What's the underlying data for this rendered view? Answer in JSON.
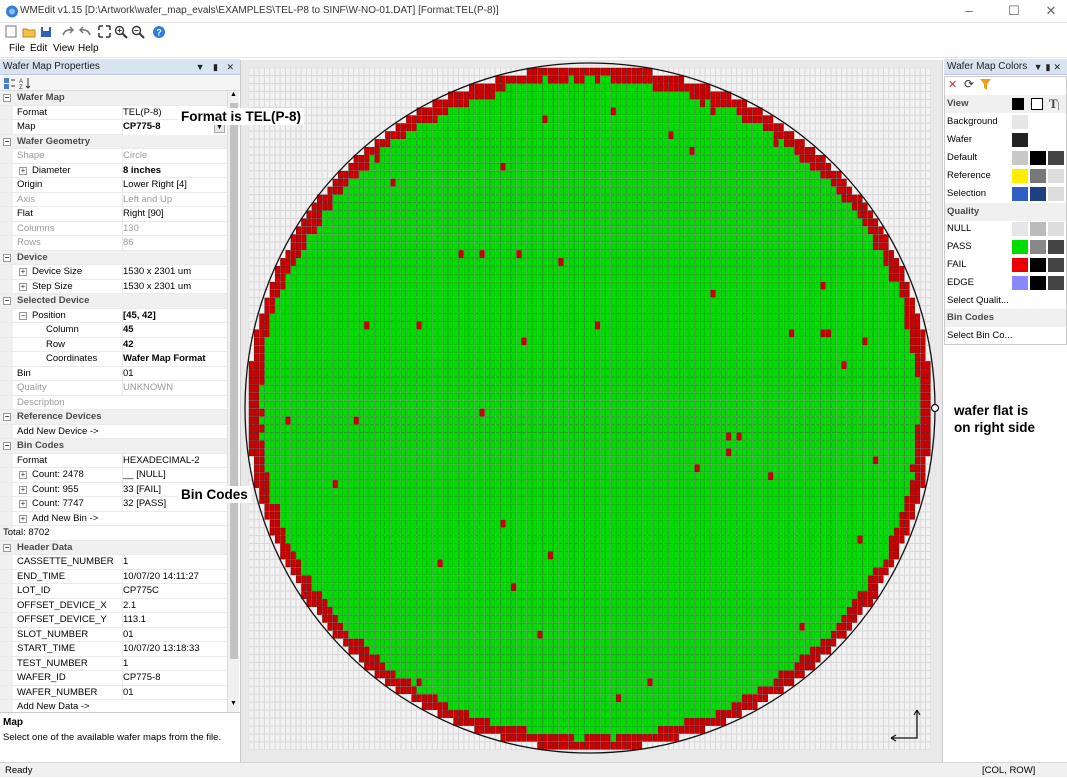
{
  "window": {
    "title": "WMEdit v1.15 [D:\\Artwork\\wafer_map_evals\\EXAMPLES\\TEL-P8 to SINF\\W-NO-01.DAT] [Format:TEL(P-8)]"
  },
  "menu": [
    "File",
    "Edit",
    "View",
    "Help"
  ],
  "left_panel": {
    "title": "Wafer Map Properties",
    "sections": {
      "wafer_map": {
        "label": "Wafer Map",
        "format_key": "Format",
        "format_val": "TEL(P-8)",
        "map_key": "Map",
        "map_val": "CP775-8"
      },
      "geometry": {
        "label": "Wafer Geometry",
        "shape_key": "Shape",
        "shape_val": "Circle",
        "diameter_key": "Diameter",
        "diameter_val": "8 inches",
        "origin_key": "Origin",
        "origin_val": "Lower Right [4]",
        "axis_key": "Axis",
        "axis_val": "Left and Up",
        "flat_key": "Flat",
        "flat_val": "Right [90]",
        "columns_key": "Columns",
        "columns_val": "130",
        "rows_key": "Rows",
        "rows_val": "86"
      },
      "device": {
        "label": "Device",
        "size_key": "Device Size",
        "size_val": "1530 x 2301 um",
        "step_key": "Step Size",
        "step_val": "1530 x 2301 um"
      },
      "selected": {
        "label": "Selected Device",
        "position_key": "Position",
        "position_val": "[45, 42]",
        "column_key": "Column",
        "column_val": "45",
        "row_key": "Row",
        "row_val": "42",
        "coords_key": "Coordinates",
        "coords_val": "Wafer Map Format",
        "bin_key": "Bin",
        "bin_val": "01",
        "quality_key": "Quality",
        "quality_val": "UNKNOWN",
        "description_key": "Description",
        "description_val": ""
      },
      "reference": {
        "label": "Reference Devices",
        "add": "Add New Device ->"
      },
      "bincodes": {
        "label": "Bin Codes",
        "format_key": "Format",
        "format_val": "HEXADECIMAL-2",
        "c1_key": "Count: 2478",
        "c1_val": "__ [NULL]",
        "c2_key": "Count: 955",
        "c2_val": "33 [FAIL]",
        "c3_key": "Count: 7747",
        "c3_val": "32 [PASS]",
        "add": "Add New Bin ->",
        "total": "Total: 8702"
      },
      "header": {
        "label": "Header Data",
        "rows": [
          {
            "k": "CASSETTE_NUMBER",
            "v": "1"
          },
          {
            "k": "END_TIME",
            "v": "10/07/20 14:11:27"
          },
          {
            "k": "LOT_ID",
            "v": "CP775C"
          },
          {
            "k": "OFFSET_DEVICE_X",
            "v": "2.1"
          },
          {
            "k": "OFFSET_DEVICE_Y",
            "v": "113.1"
          },
          {
            "k": "SLOT_NUMBER",
            "v": "01"
          },
          {
            "k": "START_TIME",
            "v": "10/07/20 13:18:33"
          },
          {
            "k": "TEST_NUMBER",
            "v": "1"
          },
          {
            "k": "WAFER_ID",
            "v": "CP775-8"
          },
          {
            "k": "WAFER_NUMBER",
            "v": "01"
          }
        ],
        "add": "Add New Data ->"
      }
    },
    "description": {
      "title": "Map",
      "text": "Select one of the available wafer maps from the file."
    }
  },
  "right_panel": {
    "title": "Wafer Map Colors",
    "view_label": "View",
    "rows": {
      "background": "Background",
      "wafer": "Wafer",
      "default": "Default",
      "reference": "Reference",
      "selection": "Selection"
    },
    "quality_label": "Quality",
    "quality_rows": {
      "null": "NULL",
      "pass": "PASS",
      "fail": "FAIL",
      "edge": "EDGE",
      "select": "Select Qualit..."
    },
    "bincodes_label": "Bin Codes",
    "select_bin": "Select Bin Co..."
  },
  "annotations": {
    "format": "Format is TEL(P-8)",
    "bincodes": "Bin Codes",
    "flat_line1": "wafer flat is",
    "flat_line2": "on right side"
  },
  "status": {
    "left": "Ready",
    "right": "[COL, ROW]"
  },
  "colors": {
    "pass": "#00dd00",
    "fail": "#cc0000",
    "null": "#f2f2f2",
    "panel_header": "#d9e4f2"
  },
  "wafer_map": {
    "columns": 130,
    "rows": 86,
    "fail_count": 955,
    "pass_count": 7747,
    "null_count": 2478,
    "flat": "Right"
  }
}
